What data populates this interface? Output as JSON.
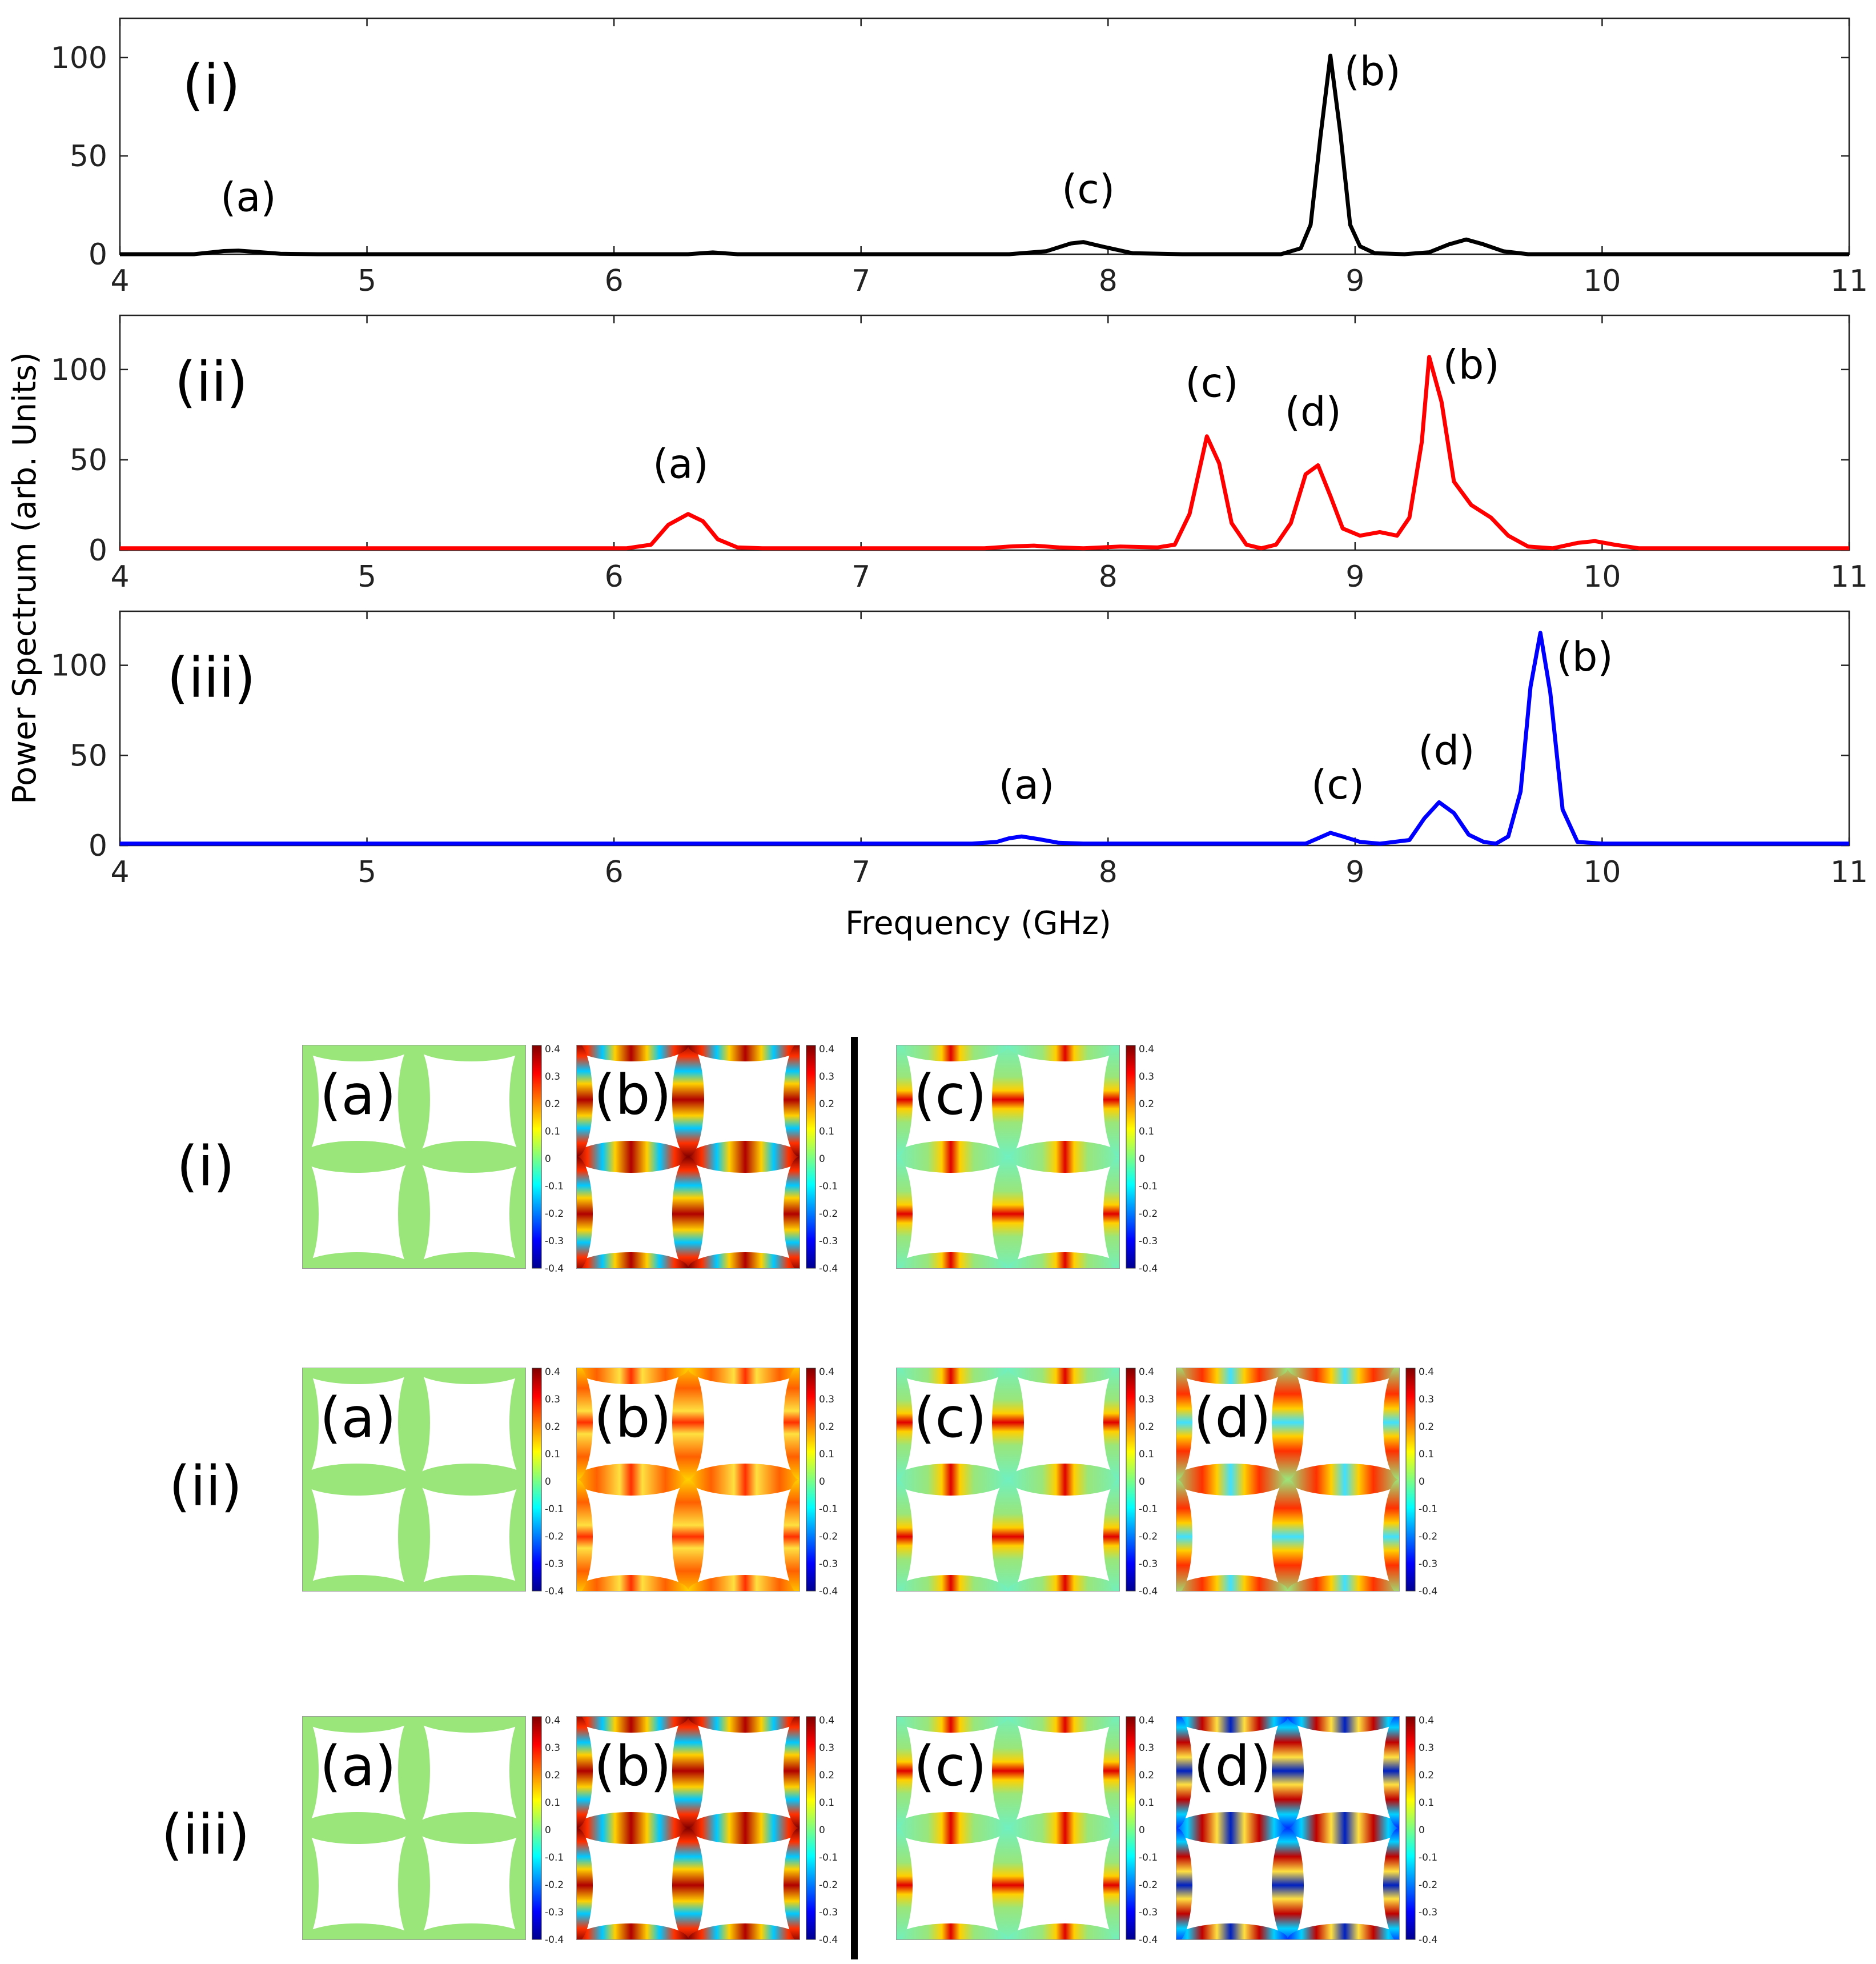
{
  "chart_data": [
    {
      "type": "line",
      "panel_label": "(i)",
      "color": "#000000",
      "xlim": [
        4,
        11
      ],
      "ylim": [
        0,
        120
      ],
      "yticks": [
        0,
        50,
        100
      ],
      "xticks": [
        4,
        5,
        6,
        7,
        8,
        9,
        10,
        11
      ],
      "series": [
        {
          "name": "(i)",
          "points": [
            [
              4,
              0
            ],
            [
              4.3,
              0
            ],
            [
              4.42,
              1.6
            ],
            [
              4.48,
              1.8
            ],
            [
              4.55,
              1.2
            ],
            [
              4.65,
              0.2
            ],
            [
              4.8,
              0
            ],
            [
              6.3,
              0
            ],
            [
              6.4,
              0.9
            ],
            [
              6.5,
              0
            ],
            [
              7.6,
              0
            ],
            [
              7.75,
              1.5
            ],
            [
              7.85,
              5.5
            ],
            [
              7.9,
              6.2
            ],
            [
              7.98,
              3.8
            ],
            [
              8.1,
              0.5
            ],
            [
              8.3,
              0
            ],
            [
              8.7,
              0
            ],
            [
              8.78,
              3
            ],
            [
              8.82,
              15
            ],
            [
              8.86,
              60
            ],
            [
              8.9,
              101
            ],
            [
              8.94,
              62
            ],
            [
              8.98,
              15
            ],
            [
              9.02,
              4
            ],
            [
              9.08,
              0.5
            ],
            [
              9.2,
              0
            ],
            [
              9.3,
              1
            ],
            [
              9.38,
              5
            ],
            [
              9.45,
              7.5
            ],
            [
              9.52,
              5
            ],
            [
              9.6,
              1.5
            ],
            [
              9.7,
              0
            ],
            [
              11,
              0
            ]
          ]
        }
      ],
      "annotations": [
        {
          "text": "(a)",
          "x": 4.52,
          "y": 22
        },
        {
          "text": "(c)",
          "x": 7.92,
          "y": 26
        },
        {
          "text": "(b)",
          "x": 9.07,
          "y": 86
        }
      ]
    },
    {
      "type": "line",
      "panel_label": "(ii)",
      "color": "#ff0000",
      "xlim": [
        4,
        11
      ],
      "ylim": [
        0,
        130
      ],
      "yticks": [
        0,
        50,
        100
      ],
      "xticks": [
        4,
        5,
        6,
        7,
        8,
        9,
        10,
        11
      ],
      "series": [
        {
          "name": "(ii)",
          "points": [
            [
              4,
              1
            ],
            [
              6.05,
              1
            ],
            [
              6.15,
              3
            ],
            [
              6.22,
              14
            ],
            [
              6.3,
              20
            ],
            [
              6.36,
              16
            ],
            [
              6.42,
              6
            ],
            [
              6.5,
              1.5
            ],
            [
              6.6,
              1
            ],
            [
              7.5,
              1
            ],
            [
              7.6,
              2
            ],
            [
              7.7,
              2.5
            ],
            [
              7.8,
              1.5
            ],
            [
              7.9,
              1
            ],
            [
              8.05,
              2
            ],
            [
              8.2,
              1.5
            ],
            [
              8.27,
              3
            ],
            [
              8.33,
              20
            ],
            [
              8.4,
              63
            ],
            [
              8.45,
              48
            ],
            [
              8.5,
              15
            ],
            [
              8.56,
              3
            ],
            [
              8.62,
              1
            ],
            [
              8.68,
              3
            ],
            [
              8.74,
              15
            ],
            [
              8.8,
              42
            ],
            [
              8.85,
              47
            ],
            [
              8.9,
              30
            ],
            [
              8.95,
              12
            ],
            [
              9.02,
              8
            ],
            [
              9.1,
              10
            ],
            [
              9.17,
              8
            ],
            [
              9.22,
              18
            ],
            [
              9.27,
              60
            ],
            [
              9.3,
              107
            ],
            [
              9.35,
              82
            ],
            [
              9.4,
              38
            ],
            [
              9.47,
              25
            ],
            [
              9.55,
              18
            ],
            [
              9.62,
              8
            ],
            [
              9.7,
              2
            ],
            [
              9.8,
              1
            ],
            [
              9.9,
              4
            ],
            [
              9.97,
              5
            ],
            [
              10.05,
              3
            ],
            [
              10.15,
              1
            ],
            [
              11,
              1
            ]
          ]
        }
      ],
      "annotations": [
        {
          "text": "(a)",
          "x": 6.27,
          "y": 40
        },
        {
          "text": "(c)",
          "x": 8.42,
          "y": 85
        },
        {
          "text": "(d)",
          "x": 8.83,
          "y": 69
        },
        {
          "text": "(b)",
          "x": 9.47,
          "y": 95
        }
      ]
    },
    {
      "type": "line",
      "panel_label": "(iii)",
      "color": "#0000ff",
      "xlim": [
        4,
        11
      ],
      "ylim": [
        0,
        130
      ],
      "yticks": [
        0,
        50,
        100
      ],
      "xticks": [
        4,
        5,
        6,
        7,
        8,
        9,
        10,
        11
      ],
      "series": [
        {
          "name": "(iii)",
          "points": [
            [
              4,
              1
            ],
            [
              7.45,
              1
            ],
            [
              7.55,
              2
            ],
            [
              7.6,
              4
            ],
            [
              7.65,
              5
            ],
            [
              7.72,
              3.5
            ],
            [
              7.8,
              1.5
            ],
            [
              7.9,
              1
            ],
            [
              8.8,
              1
            ],
            [
              8.85,
              4
            ],
            [
              8.9,
              7
            ],
            [
              8.95,
              5
            ],
            [
              9.02,
              2
            ],
            [
              9.1,
              1
            ],
            [
              9.22,
              3
            ],
            [
              9.28,
              15
            ],
            [
              9.34,
              24
            ],
            [
              9.4,
              18
            ],
            [
              9.46,
              6
            ],
            [
              9.52,
              2
            ],
            [
              9.57,
              1
            ],
            [
              9.62,
              5
            ],
            [
              9.67,
              30
            ],
            [
              9.71,
              88
            ],
            [
              9.75,
              118
            ],
            [
              9.79,
              85
            ],
            [
              9.84,
              20
            ],
            [
              9.9,
              2
            ],
            [
              10,
              1
            ],
            [
              11,
              1
            ]
          ]
        }
      ],
      "annotations": [
        {
          "text": "(a)",
          "x": 7.67,
          "y": 26
        },
        {
          "text": "(c)",
          "x": 8.93,
          "y": 26
        },
        {
          "text": "(d)",
          "x": 9.37,
          "y": 45
        },
        {
          "text": "(b)",
          "x": 9.93,
          "y": 97
        }
      ]
    }
  ],
  "axes": {
    "xlabel": "Frequency (GHz)",
    "ylabel": "Power Spectrum (arb. Units)"
  },
  "mode_maps": {
    "colorbar_labels": [
      "0.4",
      "0.3",
      "0.2",
      "0.1",
      "0",
      "-0.1",
      "-0.2",
      "-0.3",
      "-0.4"
    ],
    "left_group": {
      "rows": [
        {
          "label": "(i)",
          "maps": [
            {
              "label": "(a)",
              "pattern": "flat"
            },
            {
              "label": "(b)",
              "pattern": "strong"
            }
          ]
        },
        {
          "label": "(ii)",
          "maps": [
            {
              "label": "(a)",
              "pattern": "flat"
            },
            {
              "label": "(b)",
              "pattern": "medium"
            }
          ]
        },
        {
          "label": "(iii)",
          "maps": [
            {
              "label": "(a)",
              "pattern": "flat"
            },
            {
              "label": "(b)",
              "pattern": "strong"
            }
          ]
        }
      ]
    },
    "right_group": {
      "rows": [
        {
          "label": "(i)",
          "maps": [
            {
              "label": "(c)",
              "pattern": "center"
            }
          ]
        },
        {
          "label": "(ii)",
          "maps": [
            {
              "label": "(c)",
              "pattern": "center"
            },
            {
              "label": "(d)",
              "pattern": "double"
            }
          ]
        },
        {
          "label": "(iii)",
          "maps": [
            {
              "label": "(c)",
              "pattern": "center"
            },
            {
              "label": "(d)",
              "pattern": "multi"
            }
          ]
        }
      ]
    }
  }
}
